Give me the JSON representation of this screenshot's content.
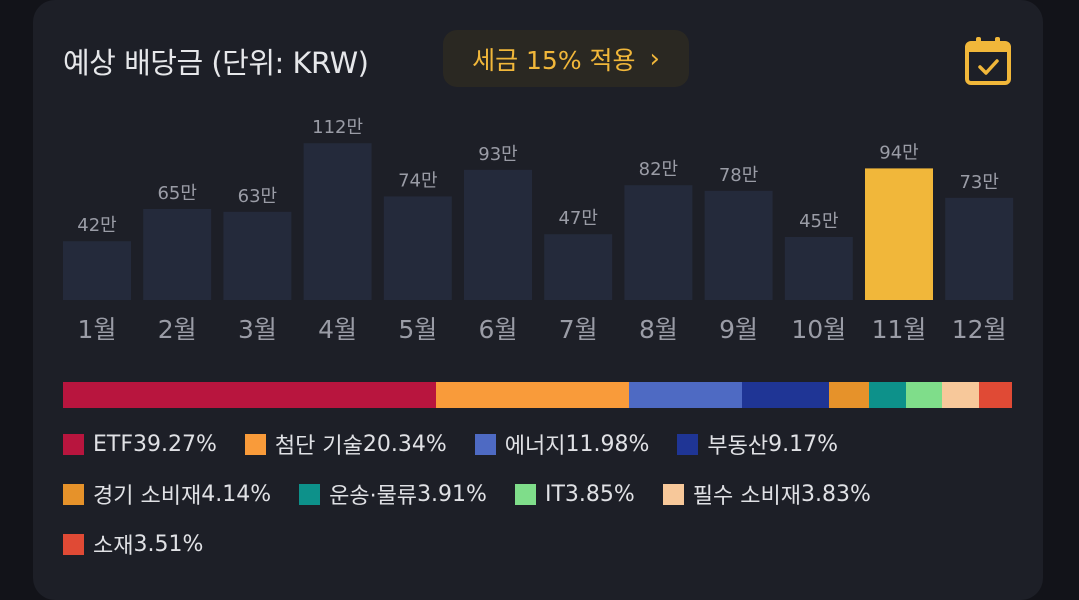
{
  "header": {
    "title": "예상 배당금 (단위: KRW)",
    "tax_button_label": "세금 15% 적용",
    "tax_button_chevron": "›",
    "calendar_icon": "calendar-check-icon"
  },
  "colors": {
    "bar": "#242a3b",
    "highlight": "#f1b73a",
    "accent": "#f1b73a"
  },
  "chart_data": {
    "type": "bar",
    "categories": [
      "1월",
      "2월",
      "3월",
      "4월",
      "5월",
      "6월",
      "7월",
      "8월",
      "9월",
      "10월",
      "11월",
      "12월"
    ],
    "values": [
      42,
      65,
      63,
      112,
      74,
      93,
      47,
      82,
      78,
      45,
      94,
      73
    ],
    "value_labels": [
      "42만",
      "65만",
      "63만",
      "112만",
      "74만",
      "93만",
      "47만",
      "82만",
      "78만",
      "45만",
      "94만",
      "73만"
    ],
    "highlighted_category": "11월",
    "title": "예상 배당금 (단위: KRW)",
    "xlabel": "",
    "ylabel": "",
    "grid": false
  },
  "allocation": {
    "type": "stacked-bar",
    "segments": [
      {
        "label": "ETF",
        "percent": 39.27,
        "percent_text": "39.27%",
        "color": "#b8153e"
      },
      {
        "label": "첨단 기술",
        "percent": 20.34,
        "percent_text": "20.34%",
        "color": "#f99b3a"
      },
      {
        "label": "에너지",
        "percent": 11.98,
        "percent_text": "11.98%",
        "color": "#4e6ac3"
      },
      {
        "label": "부동산",
        "percent": 9.17,
        "percent_text": "9.17%",
        "color": "#1f3595"
      },
      {
        "label": "경기 소비재",
        "percent": 4.14,
        "percent_text": "4.14%",
        "color": "#e6922a"
      },
      {
        "label": "운송·물류",
        "percent": 3.91,
        "percent_text": "3.91%",
        "color": "#0d918a"
      },
      {
        "label": "IT",
        "percent": 3.85,
        "percent_text": "3.85%",
        "color": "#7fdd8a"
      },
      {
        "label": "필수 소비재",
        "percent": 3.83,
        "percent_text": "3.83%",
        "color": "#f7c89a"
      },
      {
        "label": "소재",
        "percent": 3.51,
        "percent_text": "3.51%",
        "color": "#e04a35"
      }
    ]
  }
}
